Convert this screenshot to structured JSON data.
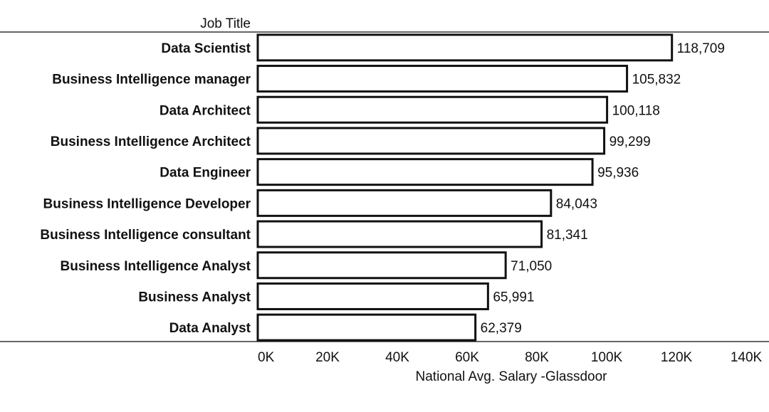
{
  "chart_data": {
    "type": "bar",
    "orientation": "horizontal",
    "column_header": "Job Title",
    "categories": [
      "Data Scientist",
      "Business Intelligence manager",
      "Data Architect",
      "Business Intelligence Architect",
      "Data Engineer",
      "Business Intelligence Developer",
      "Business Intelligence consultant",
      "Business Intelligence Analyst",
      "Business Analyst",
      "Data Analyst"
    ],
    "values": [
      118709,
      105832,
      100118,
      99299,
      95936,
      84043,
      81341,
      71050,
      65991,
      62379
    ],
    "value_labels": [
      "118,709",
      "105,832",
      "100,118",
      "99,299",
      "95,936",
      "84,043",
      "81,341",
      "71,050",
      "65,991",
      "62,379"
    ],
    "xlabel": "National Avg. Salary -Glassdoor",
    "xlim": [
      0,
      140000
    ],
    "x_ticks": [
      0,
      20000,
      40000,
      60000,
      80000,
      100000,
      120000,
      140000
    ],
    "x_tick_labels": [
      "0K",
      "20K",
      "40K",
      "60K",
      "80K",
      "100K",
      "120K",
      "140K"
    ],
    "grid": false,
    "legend": "none",
    "colors": {
      "bar_fill": "#ffffff",
      "bar_stroke": "#111111",
      "text": "#111111"
    }
  }
}
